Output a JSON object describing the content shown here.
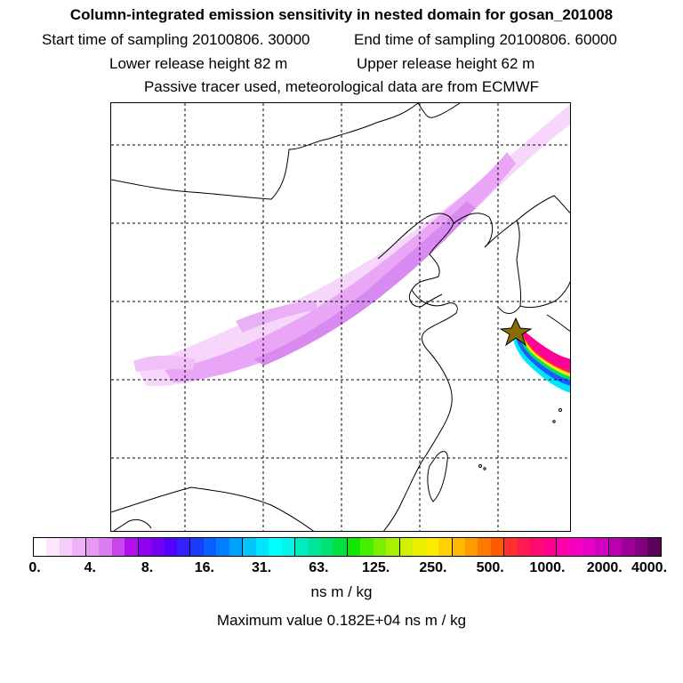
{
  "header": {
    "title": "Column-integrated emission sensitivity in nested domain for gosan_201008",
    "start_label": "Start time of sampling 20100806. 30000",
    "end_label": "End time of sampling 20100806. 60000",
    "lower_label": "Lower release height   82 m",
    "upper_label": "Upper release height   62 m",
    "tracer_note": "Passive tracer used, meteorological data are from ECMWF"
  },
  "colors": {
    "low_plume": "#e9a6f6",
    "low_plume_light": "#f6d6fb",
    "mid_plume": "#d98af0",
    "cyan": "#00e5ff",
    "blue": "#1a5cff",
    "green": "#00e070",
    "yellow": "#f5e600",
    "red": "#ff1a5c",
    "magenta": "#ff0099",
    "release_marker": "#8a6d00"
  },
  "chart_data": {
    "type": "heatmap",
    "title": "Column-integrated emission sensitivity in nested domain for gosan_201008",
    "units": "ns m / kg",
    "colorbar_ticks": [
      "0.",
      "4.",
      "8.",
      "16.",
      "31.",
      "63.",
      "125.",
      "250.",
      "500.",
      "1000.",
      "2000.",
      "4000."
    ],
    "colorbar_colors": [
      "#ffffff",
      "#fbe6fd",
      "#f6ccfb",
      "#f0b0f7",
      "#e79af3",
      "#dc7cf0",
      "#c845ee",
      "#b10fee",
      "#9000f0",
      "#7300f5",
      "#5200ff",
      "#3320ff",
      "#1a3cff",
      "#0a5fff",
      "#0080ff",
      "#00a2ff",
      "#00c5ff",
      "#00e5ff",
      "#00ffff",
      "#00f5e8",
      "#00ecc0",
      "#00e59a",
      "#00e270",
      "#00e040",
      "#10e800",
      "#45ef00",
      "#7af000",
      "#a6f000",
      "#cff000",
      "#e8f000",
      "#ffeb00",
      "#ffd200",
      "#ffb800",
      "#ff9c00",
      "#ff7a00",
      "#ff5a00",
      "#ff3030",
      "#ff1a50",
      "#ff0a6e",
      "#ff0090",
      "#ff00b0",
      "#f500c0",
      "#e600c8",
      "#d200c0",
      "#bb00b0",
      "#9e009a",
      "#800080",
      "#5c005c"
    ],
    "maximum_value": 1820,
    "maximum_label": "Maximum value  0.182E+04 ns m / kg",
    "release_site": "gosan",
    "release_marker": "star"
  }
}
